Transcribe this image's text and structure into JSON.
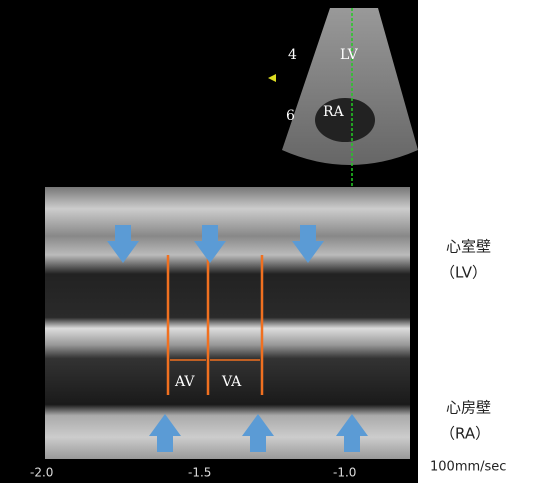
{
  "sector": {
    "labels": [
      "LV",
      "RA"
    ],
    "depth_ticks": [
      "4",
      "6"
    ]
  },
  "mmode": {
    "intervals": [
      "AV",
      "VA"
    ],
    "time_ticks": [
      "-2.0",
      "-1.5",
      "-1.0"
    ]
  },
  "legend": {
    "ventricle": {
      "name": "心室壁",
      "abbr": "（LV）"
    },
    "atrium": {
      "name": "心房壁",
      "abbr": "（RA）"
    },
    "speed": "100mm/sec"
  }
}
